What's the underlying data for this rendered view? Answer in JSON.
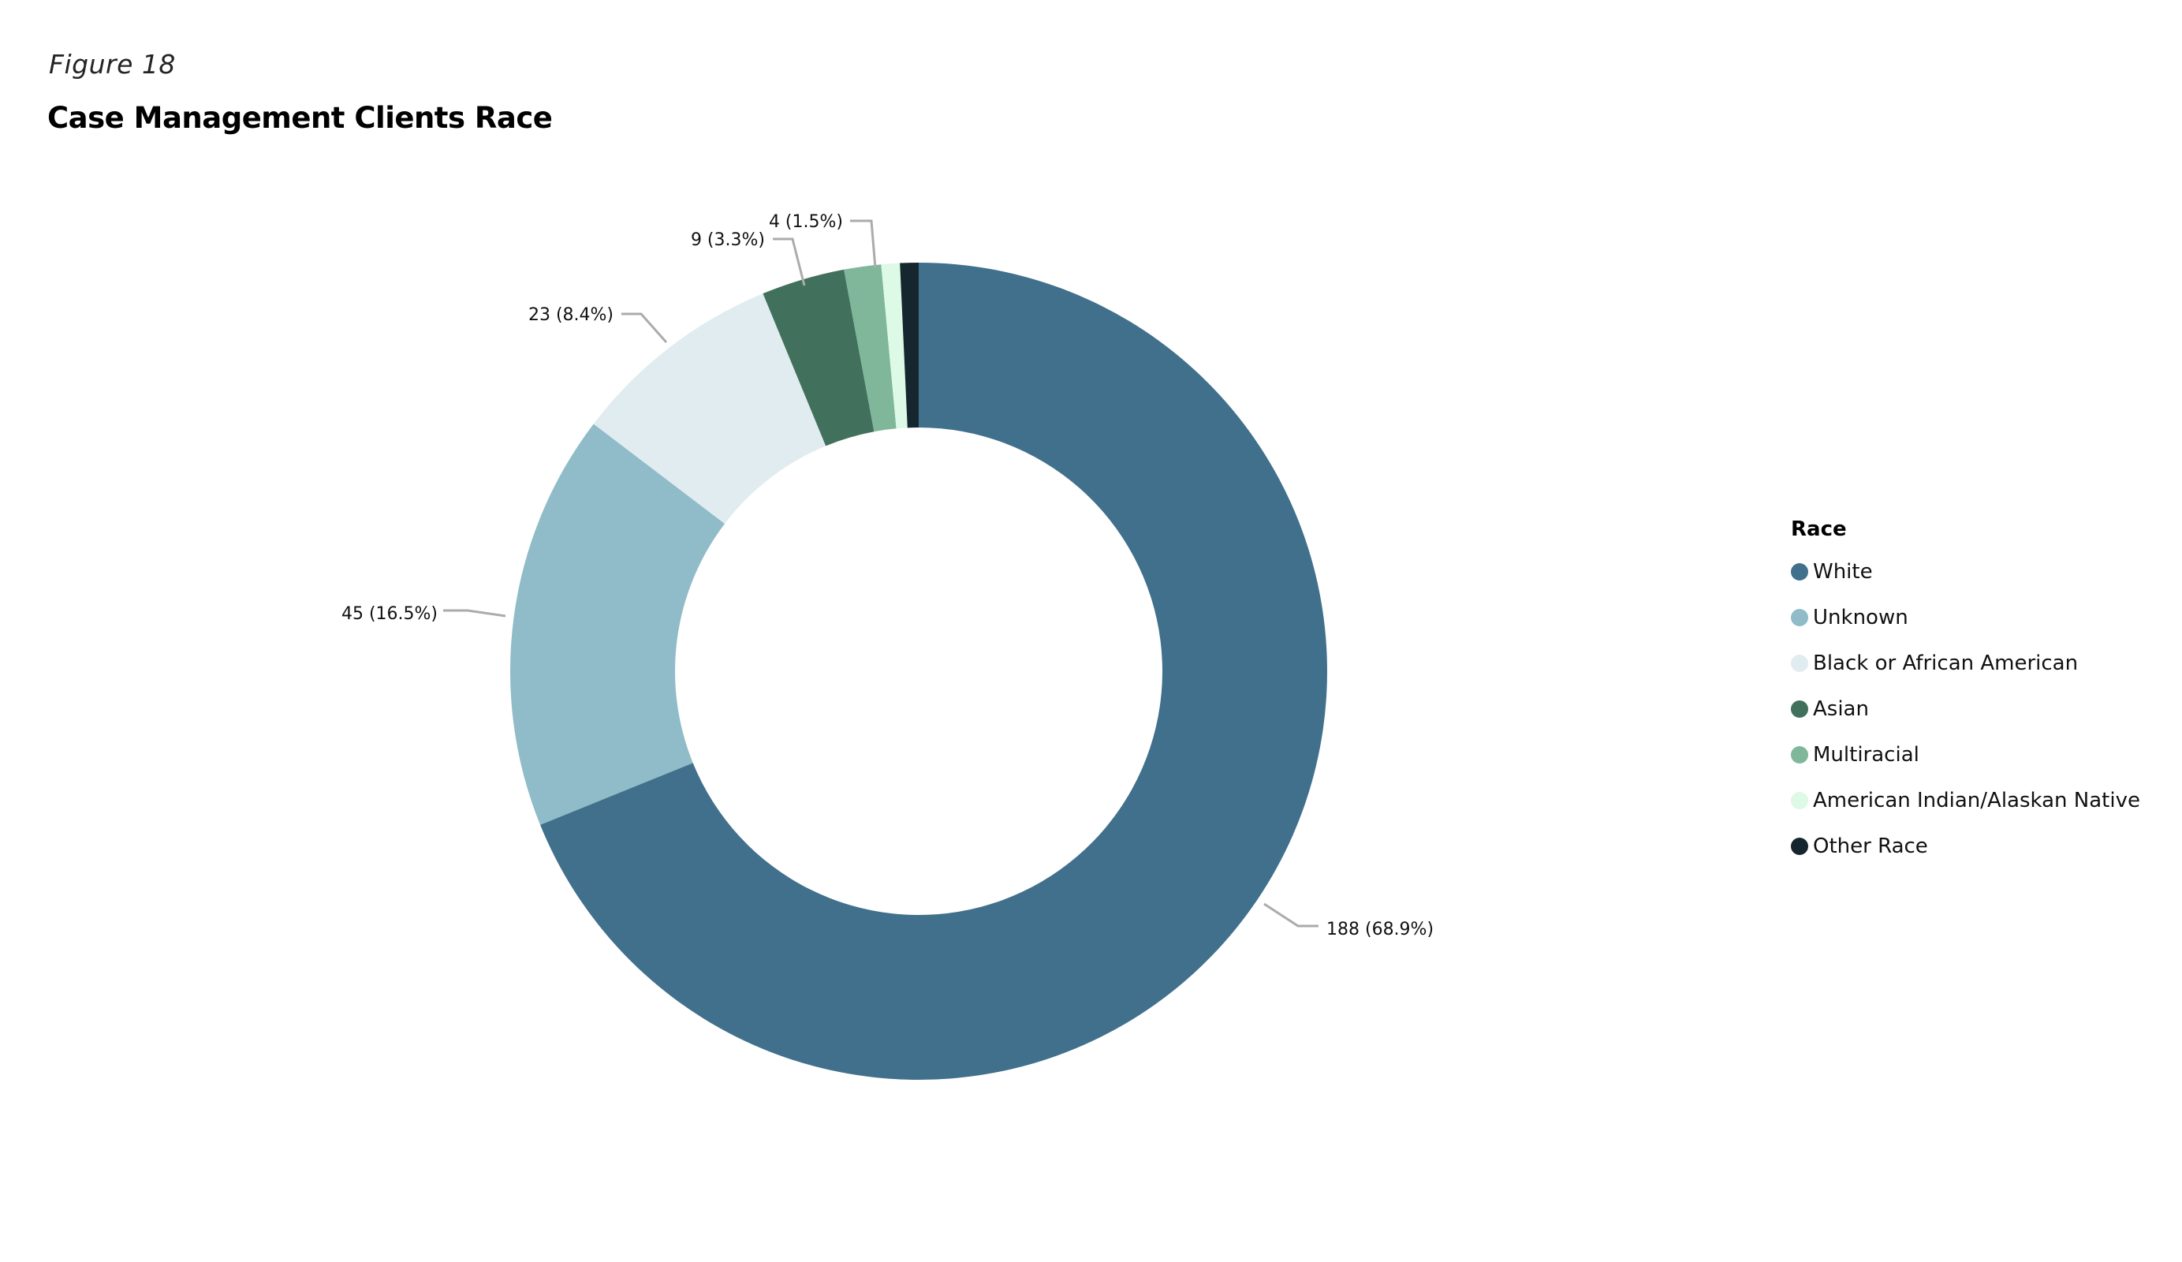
{
  "header": {
    "figure_label": "Figure 18",
    "title": "Case Management Clients Race"
  },
  "legend": {
    "title": "Race",
    "items": [
      {
        "label": "White",
        "color": "#41708C"
      },
      {
        "label": "Unknown",
        "color": "#8FBCC8"
      },
      {
        "label": "Black or African American",
        "color": "#E1ECF0"
      },
      {
        "label": "Asian",
        "color": "#41715C"
      },
      {
        "label": "Multiracial",
        "color": "#80B69A"
      },
      {
        "label": "American Indian/Alaskan Native",
        "color": "#DDFAE6"
      },
      {
        "label": "Other Race",
        "color": "#15262E"
      }
    ]
  },
  "chart_data": {
    "type": "pie",
    "subtype": "donut",
    "title": "Case Management Clients Race",
    "legend_title": "Race",
    "legend_position": "right",
    "categories": [
      "White",
      "Unknown",
      "Black or African American",
      "Asian",
      "Multiracial",
      "American Indian/Alaskan Native",
      "Other Race"
    ],
    "values": [
      188,
      45,
      23,
      9,
      4,
      2,
      2
    ],
    "percentages": [
      68.9,
      16.5,
      8.4,
      3.3,
      1.5,
      0.7,
      0.7
    ],
    "colors": [
      "#41708C",
      "#8FBCC8",
      "#E1ECF0",
      "#41715C",
      "#80B69A",
      "#DDFAE6",
      "#15262E"
    ],
    "data_labels": [
      {
        "category": "White",
        "text": "188 (68.9%)"
      },
      {
        "category": "Unknown",
        "text": "45 (16.5%)"
      },
      {
        "category": "Black or African American",
        "text": "23 (8.4%)"
      },
      {
        "category": "Asian",
        "text": "9 (3.3%)"
      },
      {
        "category": "Multiracial",
        "text": "4 (1.5%)"
      }
    ]
  }
}
